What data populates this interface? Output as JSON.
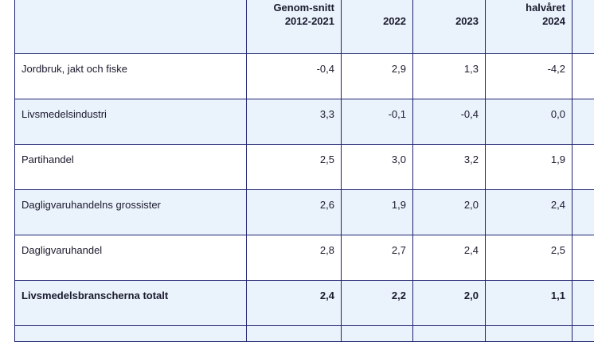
{
  "table": {
    "headers": [
      {
        "lines": [
          "Genom-snitt",
          "2012-2021"
        ]
      },
      {
        "lines": [
          "2022"
        ]
      },
      {
        "lines": [
          "2023"
        ]
      },
      {
        "lines": [
          "Första halvåret",
          "2024"
        ]
      }
    ],
    "rows": [
      {
        "label": "Jordbruk, jakt och fiske",
        "values": [
          "-0,4",
          "2,9",
          "1,3",
          "-4,2"
        ]
      },
      {
        "label": "Livsmedelsindustri",
        "values": [
          "3,3",
          "-0,1",
          "-0,4",
          "0,0"
        ]
      },
      {
        "label": "Partihandel",
        "values": [
          "2,5",
          "3,0",
          "3,2",
          "1,9"
        ]
      },
      {
        "label": "Dagligvaruhandelns grossister",
        "values": [
          "2,6",
          "1,9",
          "2,0",
          "2,4"
        ]
      },
      {
        "label": "Dagligvaruhandel",
        "values": [
          "2,8",
          "2,7",
          "2,4",
          "2,5"
        ]
      },
      {
        "label": "Livsmedelsbranscherna totalt",
        "values": [
          "2,4",
          "2,2",
          "2,0",
          "1,1"
        ]
      }
    ]
  },
  "colors": {
    "border": "#1f2370",
    "alt_row_bg": "#eaf2fb",
    "text": "#1a1a2e"
  }
}
